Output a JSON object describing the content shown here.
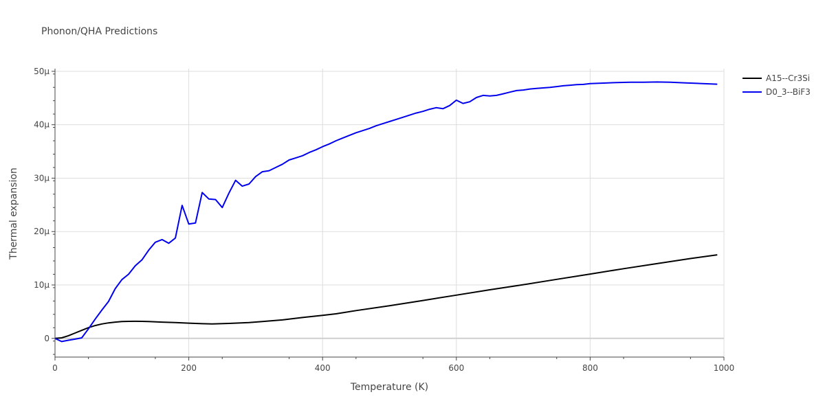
{
  "chart_data": {
    "type": "line",
    "title": "Phonon/QHA Predictions",
    "xlabel": "Temperature (K)",
    "ylabel": "Thermal expansion",
    "xlim": [
      0,
      1000
    ],
    "ylim": [
      -3.5,
      50.5
    ],
    "x_ticks": [
      0,
      200,
      400,
      600,
      800,
      1000
    ],
    "x_tick_labels": [
      "0",
      "200",
      "400",
      "600",
      "800",
      "1000"
    ],
    "y_ticks": [
      0,
      10,
      20,
      30,
      40,
      50
    ],
    "y_tick_labels": [
      "0",
      "10μ",
      "20μ",
      "30μ",
      "40μ",
      "50μ"
    ],
    "grid": true,
    "legend_position": "top-right",
    "series": [
      {
        "name": "A15--Cr3Si",
        "color": "#000000",
        "x": [
          0,
          10,
          20,
          30,
          40,
          50,
          60,
          70,
          80,
          90,
          100,
          110,
          120,
          130,
          140,
          160,
          180,
          200,
          220,
          235,
          260,
          290,
          310,
          340,
          370,
          400,
          420,
          450,
          500,
          550,
          600,
          650,
          700,
          750,
          800,
          850,
          900,
          950,
          990
        ],
        "y": [
          0,
          0.1,
          0.5,
          1.0,
          1.5,
          2.0,
          2.4,
          2.7,
          2.9,
          3.05,
          3.15,
          3.18,
          3.2,
          3.18,
          3.15,
          3.05,
          2.95,
          2.85,
          2.75,
          2.7,
          2.8,
          2.95,
          3.15,
          3.45,
          3.9,
          4.3,
          4.6,
          5.2,
          6.1,
          7.1,
          8.1,
          9.1,
          10.05,
          11.05,
          12.05,
          13.05,
          14.0,
          14.95,
          15.65
        ]
      },
      {
        "name": "D0_3--BiF3",
        "color": "#0000ee",
        "x": [
          0,
          10,
          20,
          30,
          40,
          50,
          60,
          70,
          80,
          90,
          100,
          110,
          120,
          130,
          140,
          150,
          160,
          170,
          180,
          190,
          200,
          210,
          220,
          230,
          240,
          250,
          260,
          270,
          280,
          290,
          300,
          310,
          320,
          330,
          340,
          350,
          360,
          370,
          380,
          390,
          400,
          410,
          420,
          430,
          440,
          450,
          460,
          470,
          480,
          490,
          500,
          510,
          520,
          530,
          540,
          550,
          560,
          570,
          580,
          590,
          600,
          610,
          620,
          630,
          640,
          650,
          660,
          670,
          680,
          690,
          700,
          710,
          720,
          730,
          740,
          750,
          760,
          770,
          780,
          790,
          800,
          820,
          840,
          860,
          880,
          900,
          920,
          940,
          960,
          990
        ],
        "y": [
          0,
          -0.6,
          -0.35,
          -0.15,
          0.1,
          1.8,
          3.6,
          5.3,
          6.9,
          9.3,
          11.0,
          12.0,
          13.6,
          14.7,
          16.5,
          18.0,
          18.5,
          17.8,
          18.8,
          24.9,
          21.4,
          21.6,
          27.3,
          26.1,
          26.0,
          24.5,
          27.2,
          29.6,
          28.5,
          28.9,
          30.3,
          31.2,
          31.4,
          32.0,
          32.6,
          33.4,
          33.8,
          34.2,
          34.8,
          35.3,
          35.9,
          36.4,
          37.0,
          37.5,
          38.0,
          38.5,
          38.9,
          39.3,
          39.8,
          40.2,
          40.6,
          41.0,
          41.4,
          41.8,
          42.2,
          42.5,
          42.9,
          43.2,
          43.0,
          43.6,
          44.6,
          44.0,
          44.3,
          45.1,
          45.5,
          45.4,
          45.5,
          45.8,
          46.1,
          46.4,
          46.5,
          46.7,
          46.8,
          46.9,
          47.0,
          47.15,
          47.3,
          47.4,
          47.5,
          47.55,
          47.7,
          47.8,
          47.9,
          47.95,
          47.95,
          48.0,
          47.95,
          47.85,
          47.75,
          47.6
        ]
      }
    ]
  }
}
